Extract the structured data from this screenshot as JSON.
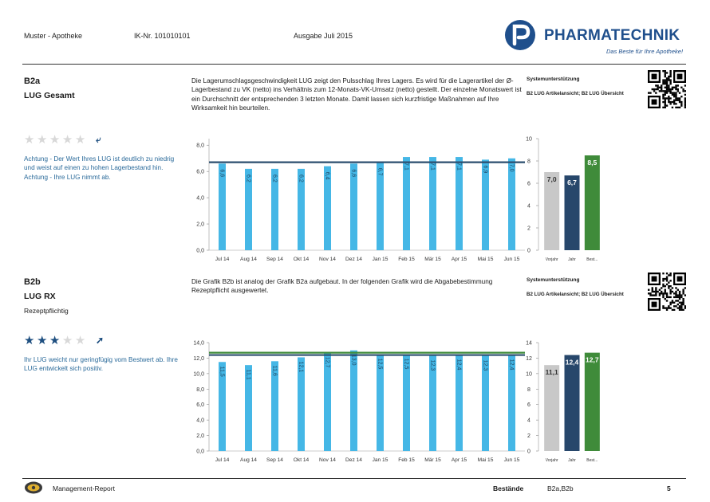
{
  "header": {
    "pharmacy": "Muster - Apotheke",
    "ik_number": "IK-Nr. 101010101",
    "edition": "Ausgabe Juli 2015",
    "brand_name": "PHARMATECHNIK",
    "brand_tagline": "Das Beste für Ihre Apotheke!"
  },
  "sections": [
    {
      "code": "B2a",
      "name": "LUG Gesamt",
      "subtitle": "",
      "description": "Die Lagerumschlagsgeschwindigkeit LUG zeigt den Pulsschlag Ihres Lagers. Es wird für die Lagerartikel der Ø-Lagerbestand zu VK (netto) ins Verhältnis zum 12-Monats-VK-Umsatz (netto) gestellt. Der einzelne Monatswert ist ein Durchschnitt der entsprechenden 3 letzten Monate. Damit lassen sich kurzfristige Maßnahmen auf Ihre Wirksamkeit hin beurteilen.",
      "system_support_title": "Systemunterstützung",
      "system_support_text": "B2 LUG Artikelansicht; B2 LUG Übersicht",
      "rating": 0,
      "rating_max": 5,
      "trend_icon": "trend-down-arrow-icon",
      "hint": "Achtung - Der Wert Ihres LUG ist deutlich zu niedrig und weist auf einen zu hohen Lagerbestand hin. Achtung - Ihre LUG nimmt ab."
    },
    {
      "code": "B2b",
      "name": "LUG RX",
      "subtitle": "Rezeptpflichtig",
      "description": "Die Grafik B2b ist analog der Grafik B2a aufgebaut. In der folgenden Grafik wird die Abgabebestimmung Rezeptpflicht ausgewertet.",
      "system_support_title": "Systemunterstützung",
      "system_support_text": "B2 LUG Artikelansicht; B2 LUG Übersicht",
      "rating": 3,
      "rating_max": 5,
      "trend_icon": "trend-up-arrow-icon",
      "hint": "Ihr LUG weicht nur geringfügig vom Bestwert ab. Ihre LUG entwickelt sich positiv."
    }
  ],
  "chart_data": [
    {
      "type": "bar",
      "categories": [
        "Jul 14",
        "Aug 14",
        "Sep 14",
        "Okt 14",
        "Nov 14",
        "Dez 14",
        "Jan 15",
        "Feb 15",
        "Mär 15",
        "Apr 15",
        "Mai 15",
        "Jun 15"
      ],
      "values": [
        6.6,
        6.2,
        6.2,
        6.2,
        6.4,
        6.6,
        6.7,
        7.1,
        7.1,
        7.1,
        6.9,
        7.0
      ],
      "labels": [
        "6,6",
        "6,2",
        "6,2",
        "6,2",
        "6,4",
        "6,6",
        "6,7",
        "7,1",
        "7,1",
        "7,1",
        "6,9",
        "7,0"
      ],
      "ticks": [
        0,
        2,
        4,
        6,
        8
      ],
      "tick_labels": [
        "0,0",
        "2,0",
        "4,0",
        "6,0",
        "8,0"
      ],
      "ylim": [
        0,
        8.5
      ],
      "reference_lines": [
        {
          "value": 6.7,
          "color": "#2b4e6e"
        }
      ],
      "bar_color": "#45b7e6"
    },
    {
      "type": "bar",
      "categories": [
        "Vorjahr",
        "Jahr",
        "Best..."
      ],
      "values": [
        7.0,
        6.7,
        8.5
      ],
      "labels": [
        "7,0",
        "6,7",
        "8,5"
      ],
      "colors": [
        "#c8c8c8",
        "#27476b",
        "#3f8b3a"
      ],
      "ticks": [
        0,
        2,
        4,
        6,
        8,
        10
      ],
      "tick_labels": [
        "0",
        "2",
        "4",
        "6",
        "8",
        "10"
      ],
      "ylim": [
        0,
        10
      ]
    },
    {
      "type": "bar",
      "categories": [
        "Jul 14",
        "Aug 14",
        "Sep 14",
        "Okt 14",
        "Nov 14",
        "Dez 14",
        "Jan 15",
        "Feb 15",
        "Mär 15",
        "Apr 15",
        "Mai 15",
        "Jun 15"
      ],
      "values": [
        11.5,
        11.1,
        11.6,
        12.1,
        12.7,
        13.0,
        12.5,
        12.5,
        12.3,
        12.4,
        12.3,
        12.4
      ],
      "labels": [
        "11,5",
        "11,1",
        "11,6",
        "12,1",
        "12,7",
        "13,0",
        "12,5",
        "12,5",
        "12,3",
        "12,4",
        "12,3",
        "12,4"
      ],
      "ticks": [
        0,
        2,
        4,
        6,
        8,
        10,
        12,
        14
      ],
      "tick_labels": [
        "0,0",
        "2,0",
        "4,0",
        "6,0",
        "8,0",
        "10,0",
        "12,0",
        "14,0"
      ],
      "ylim": [
        0,
        14
      ],
      "reference_lines": [
        {
          "value": 12.7,
          "color": "#3f8b3a"
        },
        {
          "value": 12.4,
          "color": "#2b4e6e"
        }
      ],
      "bar_color": "#45b7e6"
    },
    {
      "type": "bar",
      "categories": [
        "Vorjahr",
        "Jahr",
        "Best..."
      ],
      "values": [
        11.1,
        12.4,
        12.7
      ],
      "labels": [
        "11,1",
        "12,4",
        "12,7"
      ],
      "colors": [
        "#c8c8c8",
        "#27476b",
        "#3f8b3a"
      ],
      "ticks": [
        0,
        2,
        4,
        6,
        8,
        10,
        12,
        14
      ],
      "tick_labels": [
        "0",
        "2",
        "4",
        "6",
        "8",
        "10",
        "12",
        "14"
      ],
      "ylim": [
        0,
        14
      ]
    }
  ],
  "footer": {
    "report_title": "Management-Report",
    "category_label": "Bestände",
    "category_value": "B2a,B2b",
    "page_number": "5"
  }
}
